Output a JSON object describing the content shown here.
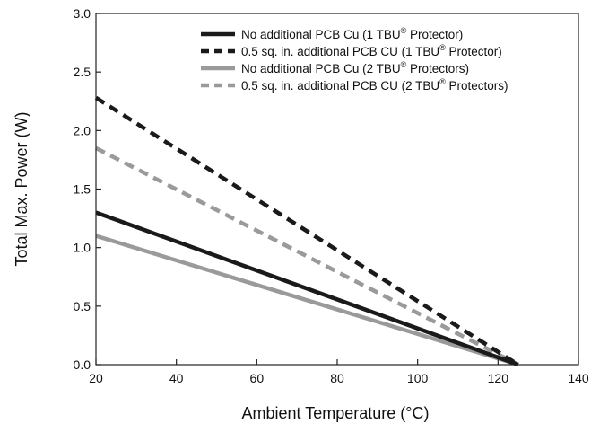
{
  "chart_data": {
    "type": "line",
    "title": "",
    "xlabel": "Ambient Temperature (°C)",
    "ylabel": "Total Max. Power (W)",
    "xlim": [
      20,
      140
    ],
    "ylim": [
      0.0,
      3.0
    ],
    "x_ticks": [
      20,
      40,
      60,
      80,
      100,
      120,
      140
    ],
    "y_ticks": [
      0.0,
      0.5,
      1.0,
      1.5,
      2.0,
      2.5,
      3.0
    ],
    "x_tick_labels": [
      "20",
      "40",
      "60",
      "80",
      "100",
      "120",
      "140"
    ],
    "y_tick_labels": [
      "0.0",
      "0.5",
      "1.0",
      "1.5",
      "2.0",
      "2.5",
      "3.0"
    ],
    "grid": false,
    "legend_position": "top-right",
    "series": [
      {
        "id": "s1",
        "legend_main": "No additional PCB Cu (1 TBU",
        "legend_sup": "®",
        "legend_tail": " Protector)",
        "color": "#1a1a1a",
        "dashed": false,
        "x": [
          20,
          125
        ],
        "y": [
          1.3,
          0.0
        ]
      },
      {
        "id": "s2",
        "legend_main": "0.5 sq. in. additional PCB CU (1 TBU",
        "legend_sup": "®",
        "legend_tail": " Protector)",
        "color": "#1a1a1a",
        "dashed": true,
        "x": [
          20,
          125
        ],
        "y": [
          2.28,
          0.0
        ]
      },
      {
        "id": "s3",
        "legend_main": "No additional PCB Cu (2 TBU",
        "legend_sup": "®",
        "legend_tail": " Protectors)",
        "color": "#9a9a9a",
        "dashed": false,
        "x": [
          20,
          125
        ],
        "y": [
          1.1,
          0.0
        ]
      },
      {
        "id": "s4",
        "legend_main": "0.5 sq. in. additional PCB CU (2 TBU",
        "legend_sup": "®",
        "legend_tail": " Protectors)",
        "color": "#9a9a9a",
        "dashed": true,
        "x": [
          20,
          125
        ],
        "y": [
          1.85,
          0.0
        ]
      }
    ]
  }
}
